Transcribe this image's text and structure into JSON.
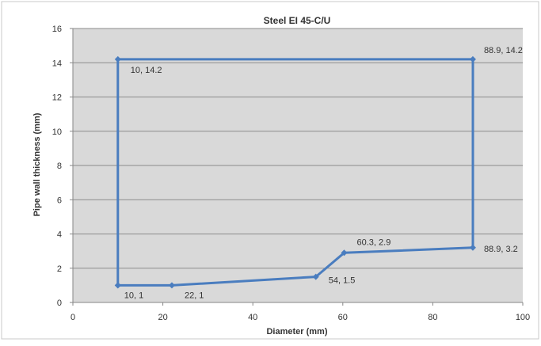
{
  "chart_data": {
    "type": "line",
    "title": "Steel EI 45-C/U",
    "xlabel": "Diameter (mm)",
    "ylabel": "Pipe wall thickness (mm)",
    "xlim": [
      0,
      100
    ],
    "ylim": [
      0,
      16
    ],
    "x_ticks": [
      0,
      20,
      40,
      60,
      80,
      100
    ],
    "y_ticks": [
      0,
      2,
      4,
      6,
      8,
      10,
      12,
      14,
      16
    ],
    "grid": "horizontal",
    "legend": "none",
    "series": [
      {
        "color": "#4a7dbf",
        "points": [
          {
            "x": 10,
            "y": 1,
            "label": "10, 1"
          },
          {
            "x": 22,
            "y": 1,
            "label": "22, 1"
          },
          {
            "x": 54,
            "y": 1.5,
            "label": "54, 1.5"
          },
          {
            "x": 60.3,
            "y": 2.9,
            "label": "60.3, 2.9"
          },
          {
            "x": 88.9,
            "y": 3.2,
            "label": "88.9, 3.2"
          },
          {
            "x": 88.9,
            "y": 14.2,
            "label": "88.9, 14.2"
          },
          {
            "x": 10,
            "y": 14.2,
            "label": "10, 14.2"
          },
          {
            "x": 10,
            "y": 1,
            "label": ""
          }
        ]
      }
    ]
  }
}
